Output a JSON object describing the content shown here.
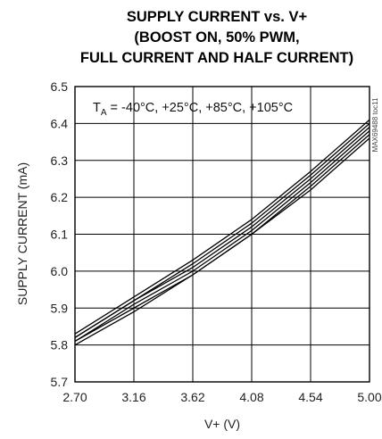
{
  "chart_data": {
    "type": "line",
    "title_lines": [
      "SUPPLY CURRENT vs. V+",
      "(BOOST ON, 50% PWM,",
      "FULL CURRENT AND HALF CURRENT)"
    ],
    "xlabel": "V+ (V)",
    "ylabel": "SUPPLY CURRENT (mA)",
    "xlim": [
      2.7,
      5.0
    ],
    "ylim": [
      5.7,
      6.5
    ],
    "x_ticks": [
      "2.70",
      "3.16",
      "3.62",
      "4.08",
      "4.54",
      "5.00"
    ],
    "y_ticks": [
      "6.5",
      "6.4",
      "6.3",
      "6.2",
      "6.1",
      "6.0",
      "5.9",
      "5.8",
      "5.7"
    ],
    "grid": true,
    "annotation": {
      "t": "T",
      "sub": "A",
      "rest": " = -40°C, +25°C, +85°C, +105°C"
    },
    "side_note": "MAX69488 toc11",
    "x": [
      2.7,
      3.16,
      3.62,
      4.08,
      4.54,
      5.0
    ],
    "series": [
      {
        "values": [
          5.83,
          5.93,
          6.03,
          6.14,
          6.27,
          6.41
        ]
      },
      {
        "values": [
          5.82,
          5.92,
          6.02,
          6.13,
          6.26,
          6.4
        ]
      },
      {
        "values": [
          5.82,
          5.92,
          6.01,
          6.12,
          6.25,
          6.39
        ]
      },
      {
        "values": [
          5.81,
          5.91,
          6.0,
          6.11,
          6.24,
          6.38
        ]
      },
      {
        "values": [
          5.81,
          5.9,
          5.99,
          6.1,
          6.23,
          6.37
        ]
      },
      {
        "values": [
          5.8,
          5.89,
          5.99,
          6.1,
          6.22,
          6.36
        ]
      }
    ]
  }
}
